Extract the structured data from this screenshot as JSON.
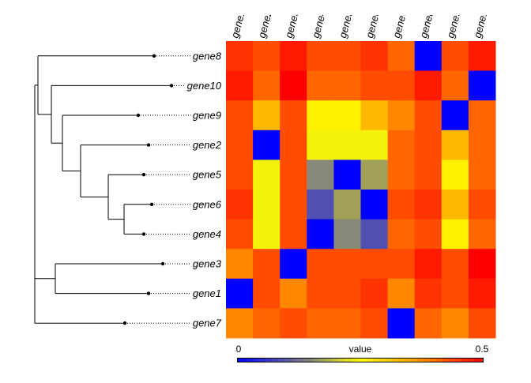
{
  "chart_data": {
    "type": "heatmap",
    "row_labels": [
      "gene8",
      "gene10",
      "gene9",
      "gene2",
      "gene5",
      "gene6",
      "gene4",
      "gene3",
      "gene1",
      "gene7"
    ],
    "col_labels": [
      "gene1",
      "gene2",
      "gene3",
      "gene4",
      "gene5",
      "gene6",
      "gene7",
      "gene8",
      "gene9",
      "gene10"
    ],
    "values": [
      [
        0.46,
        0.43,
        0.48,
        0.43,
        0.43,
        0.46,
        0.4,
        0.0,
        0.43,
        0.48
      ],
      [
        0.48,
        0.4,
        0.5,
        0.4,
        0.4,
        0.43,
        0.43,
        0.48,
        0.4,
        0.0
      ],
      [
        0.43,
        0.3,
        0.43,
        0.27,
        0.27,
        0.3,
        0.35,
        0.43,
        0.0,
        0.4
      ],
      [
        0.43,
        0.0,
        0.43,
        0.25,
        0.25,
        0.25,
        0.4,
        0.43,
        0.3,
        0.4
      ],
      [
        0.43,
        0.25,
        0.43,
        0.15,
        0.0,
        0.2,
        0.4,
        0.43,
        0.27,
        0.4
      ],
      [
        0.46,
        0.25,
        0.43,
        0.1,
        0.2,
        0.0,
        0.43,
        0.46,
        0.3,
        0.43
      ],
      [
        0.43,
        0.25,
        0.43,
        0.0,
        0.15,
        0.1,
        0.4,
        0.43,
        0.27,
        0.4
      ],
      [
        0.35,
        0.43,
        0.0,
        0.43,
        0.43,
        0.43,
        0.43,
        0.48,
        0.43,
        0.5
      ],
      [
        0.0,
        0.43,
        0.35,
        0.43,
        0.43,
        0.46,
        0.35,
        0.46,
        0.43,
        0.48
      ],
      [
        0.35,
        0.4,
        0.43,
        0.4,
        0.4,
        0.43,
        0.0,
        0.4,
        0.35,
        0.43
      ]
    ],
    "colorbar": {
      "title": "value",
      "min_label": "0",
      "max_label": "0.5",
      "range": [
        0,
        0.5
      ]
    },
    "palette": [
      [
        0.0,
        "#0000ff"
      ],
      [
        0.1,
        "#5050b0"
      ],
      [
        0.15,
        "#888878"
      ],
      [
        0.2,
        "#a0a058"
      ],
      [
        0.25,
        "#f2f20a"
      ],
      [
        0.27,
        "#fff000"
      ],
      [
        0.3,
        "#ffb800"
      ],
      [
        0.35,
        "#ff8800"
      ],
      [
        0.4,
        "#ff6600"
      ],
      [
        0.43,
        "#ff4c00"
      ],
      [
        0.46,
        "#ff3300"
      ],
      [
        0.48,
        "#ff1a00"
      ],
      [
        0.5,
        "#ff0000"
      ]
    ],
    "dendrogram": "((gene8,(gene10,(gene9,(gene2,(gene5,(gene6,gene4)))))),(gene3,gene1),gene7)"
  }
}
